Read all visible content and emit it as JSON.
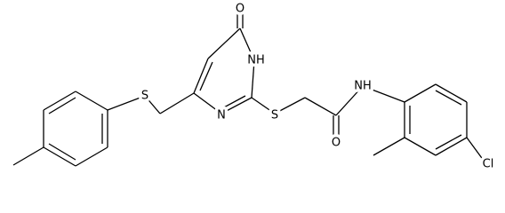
{
  "atoms": [
    {
      "label": "O"
    },
    {
      "label": "NH"
    },
    {
      "label": "N"
    },
    {
      "label": "S"
    },
    {
      "label": "S"
    },
    {
      "label": "NH"
    },
    {
      "label": "O"
    },
    {
      "label": "Cl"
    }
  ]
}
